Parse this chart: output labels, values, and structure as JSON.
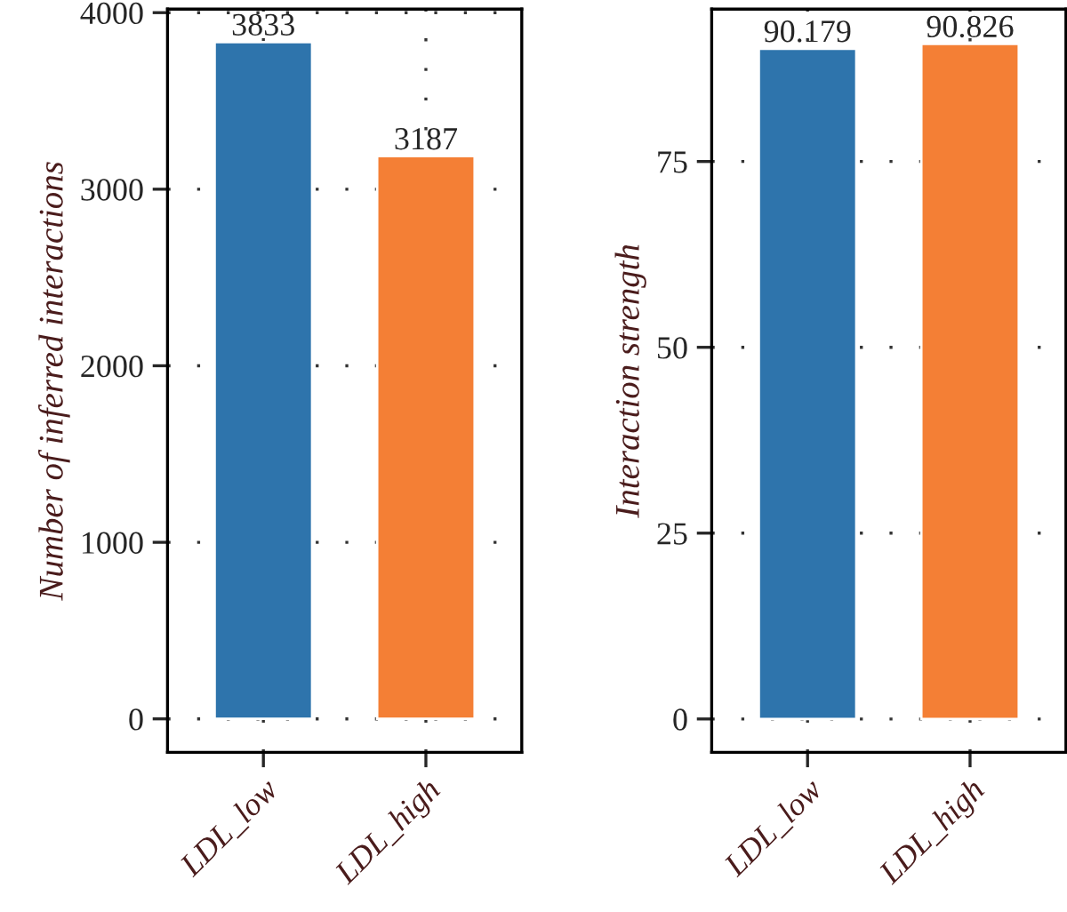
{
  "chart_data": [
    {
      "type": "bar",
      "ylabel": "Number of inferred interactions",
      "categories": [
        "LDL_low",
        "LDL_high"
      ],
      "values": [
        3833,
        3187
      ],
      "colors": [
        "#2e74ac",
        "#f47f35"
      ],
      "data_labels": true,
      "ylim": [
        -190,
        4020
      ],
      "yticks": [
        0,
        1000,
        2000,
        3000,
        4000
      ],
      "grid": true
    },
    {
      "type": "bar",
      "ylabel": "Interaction strength",
      "categories": [
        "LDL_low",
        "LDL_high"
      ],
      "values": [
        90.179,
        90.826
      ],
      "colors": [
        "#2e74ac",
        "#f47f35"
      ],
      "data_labels": true,
      "ylim": [
        -4.5,
        95.5
      ],
      "yticks": [
        0,
        25,
        50,
        75
      ],
      "grid": true
    }
  ]
}
